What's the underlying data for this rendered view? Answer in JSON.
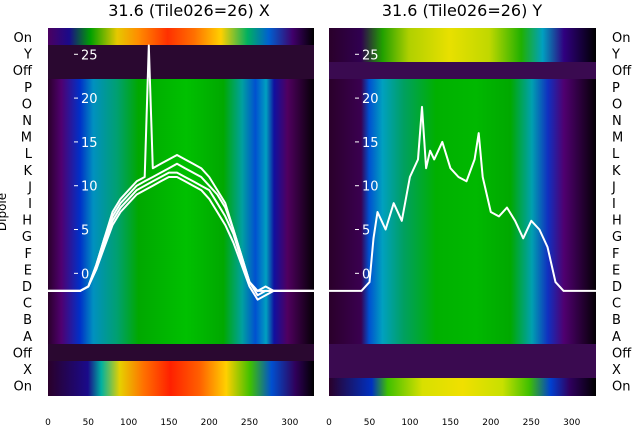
{
  "chart_data": [
    {
      "type": "heatmap",
      "title": "31.6 (Tile026=26) X",
      "ylabel": "Dipole",
      "xticks": [
        0,
        50,
        100,
        150,
        200,
        250,
        300
      ],
      "xlim": [
        0,
        330
      ],
      "yticks": [
        0,
        5,
        10,
        15,
        20,
        25
      ],
      "ylim": [
        -14,
        28
      ],
      "dipole_labels": [
        "On",
        "Y",
        "Off",
        "P",
        "O",
        "N",
        "M",
        "L",
        "K",
        "J",
        "I",
        "H",
        "G",
        "F",
        "E",
        "D",
        "C",
        "B",
        "A",
        "Off",
        "X",
        "On"
      ],
      "series": [
        {
          "name": "",
          "x": [
            0,
            10,
            20,
            30,
            40,
            50,
            60,
            70,
            80,
            90,
            100,
            110,
            120,
            125,
            130,
            140,
            150,
            160,
            170,
            180,
            190,
            200,
            210,
            220,
            230,
            240,
            250,
            260,
            270,
            280,
            290,
            300,
            310,
            320,
            330
          ],
          "values": [
            -2,
            -2,
            -2,
            -2,
            -2,
            -1.5,
            1,
            4,
            7,
            8.5,
            9.5,
            10.5,
            11,
            26,
            12,
            12.5,
            13,
            13.5,
            13,
            12.5,
            12,
            11,
            9.5,
            8,
            5,
            2,
            -1,
            -2,
            -1.5,
            -2,
            -2,
            -2,
            -2,
            -2,
            -2
          ]
        },
        {
          "name": "",
          "x": [
            0,
            10,
            20,
            30,
            40,
            50,
            60,
            70,
            80,
            90,
            100,
            110,
            120,
            130,
            140,
            150,
            160,
            170,
            180,
            190,
            200,
            210,
            220,
            230,
            240,
            250,
            260,
            270,
            280,
            290,
            300,
            310,
            320,
            330
          ],
          "values": [
            -2,
            -2,
            -2,
            -2,
            -2,
            -1.5,
            1,
            4,
            6.5,
            8,
            9,
            10,
            10.5,
            11,
            11.5,
            12,
            12.5,
            12,
            11.5,
            11,
            10,
            9,
            7.5,
            5,
            2,
            -1,
            -2,
            -2,
            -2,
            -2,
            -2,
            -2,
            -2,
            -2
          ]
        },
        {
          "name": "",
          "x": [
            0,
            10,
            20,
            30,
            40,
            50,
            60,
            70,
            80,
            90,
            100,
            110,
            120,
            130,
            140,
            150,
            160,
            170,
            180,
            190,
            200,
            210,
            220,
            230,
            240,
            250,
            260,
            270,
            280,
            290,
            300,
            310,
            320,
            330
          ],
          "values": [
            -2,
            -2,
            -2,
            -2,
            -2,
            -1.5,
            0.5,
            3.5,
            6,
            7.5,
            8.5,
            9.5,
            10,
            10.5,
            11,
            11.5,
            11.5,
            11,
            10.5,
            10,
            9.5,
            8,
            6.5,
            4.5,
            1.5,
            -1,
            -2.5,
            -2,
            -2,
            -2,
            -2,
            -2,
            -2,
            -2
          ]
        },
        {
          "name": "",
          "x": [
            0,
            10,
            20,
            30,
            40,
            50,
            60,
            70,
            80,
            90,
            100,
            110,
            120,
            130,
            140,
            150,
            160,
            170,
            180,
            190,
            200,
            210,
            220,
            230,
            240,
            250,
            260,
            270,
            280,
            290,
            300,
            310,
            320,
            330
          ],
          "values": [
            -2,
            -2,
            -2,
            -2,
            -2,
            -1.5,
            0.5,
            3,
            5.5,
            7,
            8,
            9,
            9.5,
            10,
            10.5,
            11,
            11,
            10.5,
            10,
            9.5,
            8.5,
            7,
            5.5,
            3.5,
            1,
            -1.5,
            -3,
            -2.5,
            -2,
            -2,
            -2,
            -2,
            -2,
            -2
          ]
        }
      ]
    },
    {
      "type": "heatmap",
      "title": "31.6 (Tile026=26) Y",
      "xticks": [
        0,
        50,
        100,
        150,
        200,
        250,
        300
      ],
      "xlim": [
        0,
        330
      ],
      "yticks": [
        0,
        5,
        10,
        15,
        20,
        25
      ],
      "ylim": [
        -14,
        28
      ],
      "dipole_labels": [
        "On",
        "Y",
        "Off",
        "P",
        "O",
        "N",
        "M",
        "L",
        "K",
        "J",
        "I",
        "H",
        "G",
        "F",
        "E",
        "D",
        "C",
        "B",
        "A",
        "Off",
        "X",
        "On"
      ],
      "series": [
        {
          "name": "",
          "x": [
            0,
            10,
            20,
            30,
            40,
            50,
            55,
            60,
            70,
            80,
            90,
            100,
            110,
            115,
            120,
            125,
            130,
            140,
            150,
            160,
            170,
            180,
            185,
            190,
            200,
            210,
            220,
            230,
            240,
            250,
            260,
            270,
            280,
            290,
            300,
            310,
            320,
            330
          ],
          "values": [
            -2,
            -2,
            -2,
            -2,
            -2,
            -1,
            4,
            7,
            5,
            8,
            6,
            11,
            13,
            19,
            12,
            14,
            13,
            15,
            12,
            11,
            10.5,
            13,
            16,
            11,
            7,
            6.5,
            7.5,
            6,
            4,
            6,
            5,
            3,
            -1,
            -2,
            -2,
            -2,
            -2,
            -2
          ]
        }
      ]
    }
  ]
}
